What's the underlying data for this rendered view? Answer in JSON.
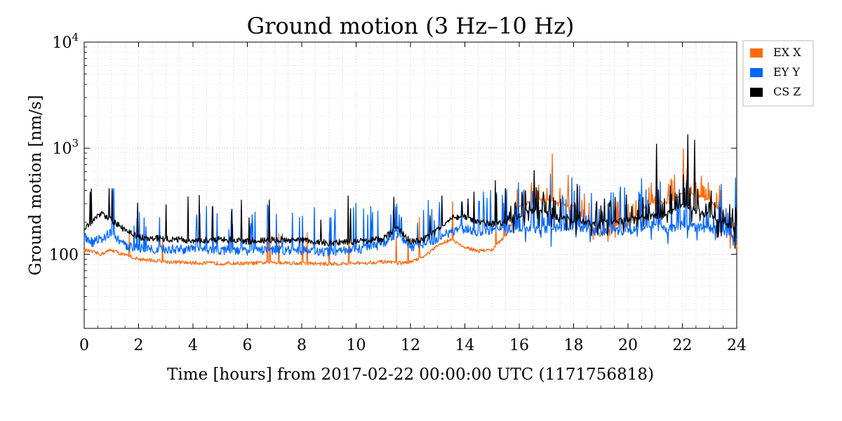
{
  "chart_data": {
    "type": "line",
    "title": "Ground motion (3 Hz–10 Hz)",
    "xlabel": "Time [hours] from 2017-02-22 00:00:00 UTC (1171756818)",
    "ylabel": "Ground motion [nm/s]",
    "xlim": [
      0,
      24
    ],
    "ylim": [
      20,
      10000
    ],
    "yscale": "log",
    "grid": true,
    "legend_position": "top-right outside",
    "x_ticks": [
      "0",
      "2",
      "4",
      "6",
      "8",
      "10",
      "12",
      "14",
      "16",
      "18",
      "20",
      "22",
      "24"
    ],
    "y_ticks": [
      {
        "value": 100,
        "base": "100",
        "exp": ""
      },
      {
        "value": 1000,
        "base": "10",
        "exp": "3"
      },
      {
        "value": 10000,
        "base": "10",
        "exp": "4"
      }
    ],
    "series": [
      {
        "name": "EX X",
        "color": "#ff6a0e",
        "x": [
          0,
          0.3,
          0.6,
          1.0,
          1.5,
          2.0,
          3.0,
          4.0,
          5.0,
          6.0,
          7.0,
          8.0,
          9.0,
          10.0,
          11.0,
          11.5,
          12.0,
          12.5,
          13.0,
          13.5,
          14.0,
          14.5,
          15.0,
          15.5,
          16.0,
          16.5,
          17.0,
          17.5,
          18.0,
          18.5,
          19.0,
          19.5,
          20.0,
          20.5,
          21.0,
          21.5,
          22.0,
          22.5,
          23.0,
          23.5,
          24.0
        ],
        "values": [
          110,
          105,
          100,
          110,
          98,
          90,
          85,
          83,
          82,
          82,
          84,
          82,
          81,
          82,
          85,
          82,
          84,
          95,
          120,
          140,
          115,
          108,
          110,
          150,
          280,
          320,
          330,
          300,
          280,
          200,
          150,
          180,
          190,
          260,
          320,
          300,
          380,
          360,
          320,
          250,
          110
        ]
      },
      {
        "name": "EY Y",
        "color": "#0066ff",
        "x": [
          0,
          0.3,
          0.6,
          1.0,
          1.5,
          2.0,
          3.0,
          4.0,
          5.0,
          6.0,
          7.0,
          8.0,
          9.0,
          10.0,
          11.0,
          11.5,
          12.0,
          12.5,
          13.0,
          13.5,
          14.0,
          14.5,
          15.0,
          15.5,
          16.0,
          16.5,
          17.0,
          17.5,
          18.0,
          18.5,
          19.0,
          19.5,
          20.0,
          20.5,
          21.0,
          21.5,
          22.0,
          22.5,
          23.0,
          23.5,
          24.0
        ],
        "values": [
          150,
          130,
          140,
          160,
          120,
          115,
          112,
          112,
          110,
          108,
          110,
          110,
          105,
          110,
          125,
          160,
          118,
          125,
          140,
          165,
          175,
          160,
          170,
          175,
          180,
          170,
          175,
          180,
          185,
          165,
          160,
          170,
          165,
          180,
          190,
          170,
          190,
          180,
          175,
          165,
          140
        ]
      },
      {
        "name": "CS Z",
        "color": "#000000",
        "x": [
          0,
          0.3,
          0.6,
          1.0,
          1.5,
          2.0,
          3.0,
          4.0,
          5.0,
          6.0,
          7.0,
          8.0,
          9.0,
          10.0,
          11.0,
          11.5,
          12.0,
          12.5,
          13.0,
          13.5,
          14.0,
          14.5,
          15.0,
          15.5,
          16.0,
          16.5,
          17.0,
          17.5,
          18.0,
          18.5,
          19.0,
          19.5,
          20.0,
          20.5,
          21.0,
          21.5,
          22.0,
          22.5,
          23.0,
          23.5,
          24.0
        ],
        "values": [
          180,
          200,
          240,
          210,
          170,
          145,
          140,
          135,
          138,
          133,
          138,
          135,
          128,
          132,
          140,
          180,
          132,
          138,
          170,
          220,
          230,
          200,
          195,
          200,
          230,
          260,
          240,
          220,
          210,
          200,
          195,
          205,
          210,
          220,
          230,
          240,
          300,
          260,
          230,
          200,
          170
        ]
      }
    ],
    "spikes": [
      {
        "series": "CS Z",
        "x": 21.05,
        "y": 1100
      },
      {
        "series": "CS Z",
        "x": 22.2,
        "y": 1350
      },
      {
        "series": "CS Z",
        "x": 22.45,
        "y": 1200
      },
      {
        "series": "CS Z",
        "x": 16.55,
        "y": 620
      },
      {
        "series": "EY Y",
        "x": 20.5,
        "y": 520
      },
      {
        "series": "EX X",
        "x": 17.8,
        "y": 560
      },
      {
        "series": "EX X",
        "x": 22.7,
        "y": 550
      }
    ]
  }
}
